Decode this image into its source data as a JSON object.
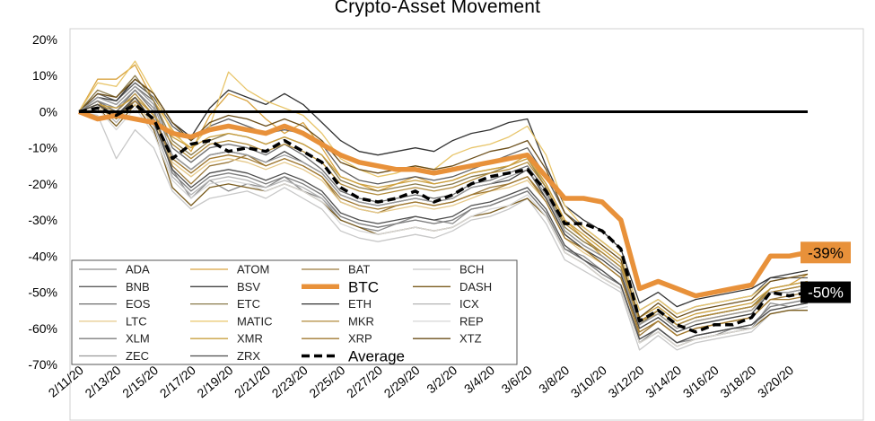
{
  "chart_data": {
    "type": "line",
    "title": "Crypto-Asset Movement",
    "xlabel": "",
    "ylabel": "",
    "ylim": [
      -70,
      20
    ],
    "y_ticks": [
      20,
      10,
      0,
      -10,
      -20,
      -30,
      -40,
      -50,
      -60,
      -70
    ],
    "y_tick_labels": [
      "20%",
      "10%",
      "0%",
      "-10%",
      "-20%",
      "-30%",
      "-40%",
      "-50%",
      "-60%",
      "-70%"
    ],
    "x": [
      "2/11/20",
      "2/12/20",
      "2/13/20",
      "2/14/20",
      "2/15/20",
      "2/16/20",
      "2/17/20",
      "2/18/20",
      "2/19/20",
      "2/20/20",
      "2/21/20",
      "2/22/20",
      "2/23/20",
      "2/24/20",
      "2/25/20",
      "2/26/20",
      "2/27/20",
      "2/28/20",
      "2/29/20",
      "3/1/20",
      "3/2/20",
      "3/3/20",
      "3/4/20",
      "3/5/20",
      "3/6/20",
      "3/7/20",
      "3/8/20",
      "3/9/20",
      "3/10/20",
      "3/11/20",
      "3/12/20",
      "3/13/20",
      "3/14/20",
      "3/15/20",
      "3/16/20",
      "3/17/20",
      "3/18/20",
      "3/19/20",
      "3/20/20",
      "3/21/20"
    ],
    "x_tick_labels": [
      "2/11/20",
      "2/13/20",
      "2/15/20",
      "2/17/20",
      "2/19/20",
      "2/21/20",
      "2/23/20",
      "2/25/20",
      "2/27/20",
      "2/29/20",
      "3/2/20",
      "3/4/20",
      "3/6/20",
      "3/8/20",
      "3/10/20",
      "3/12/20",
      "3/14/20",
      "3/16/20",
      "3/18/20",
      "3/20/20"
    ],
    "grid": false,
    "legend_position": "bottom-left",
    "highlight_labels": [
      {
        "series": "BTC",
        "text": "-39%",
        "color": "#e8913a",
        "text_color": "#000000"
      },
      {
        "series": "Average",
        "text": "-50%",
        "color": "#000000",
        "text_color": "#ffffff"
      }
    ],
    "series": [
      {
        "name": "ADA",
        "color": "#8c8c8c",
        "values": [
          0,
          3,
          1,
          6,
          1,
          -16,
          -24,
          -19,
          -22,
          -20,
          -21,
          -18,
          -22,
          -24,
          -30,
          -32,
          -33,
          -31,
          -29,
          -30,
          -31,
          -27,
          -26,
          -24,
          -22,
          -28,
          -38,
          -40,
          -44,
          -48,
          -64,
          -60,
          -64,
          -63,
          -62,
          -60,
          -60,
          -53,
          -54,
          -53
        ]
      },
      {
        "name": "ATOM",
        "color": "#d9a441",
        "values": [
          0,
          9,
          9,
          13,
          3,
          -5,
          -11,
          -1,
          5,
          3,
          -2,
          -6,
          -3,
          -10,
          -18,
          -20,
          -22,
          -20,
          -18,
          -20,
          -19,
          -17,
          -16,
          -15,
          -12,
          -20,
          -30,
          -35,
          -40,
          -44,
          -58,
          -56,
          -60,
          -58,
          -57,
          -56,
          -55,
          -49,
          -48,
          -45
        ]
      },
      {
        "name": "BAT",
        "color": "#9c7a3c",
        "values": [
          0,
          3,
          -2,
          4,
          -3,
          -15,
          -20,
          -15,
          -14,
          -12,
          -15,
          -13,
          -15,
          -18,
          -25,
          -27,
          -28,
          -26,
          -25,
          -26,
          -25,
          -23,
          -21,
          -20,
          -18,
          -24,
          -34,
          -38,
          -42,
          -46,
          -62,
          -58,
          -62,
          -60,
          -59,
          -58,
          -57,
          -52,
          -51,
          -50
        ]
      },
      {
        "name": "BCH",
        "color": "#c8c8c8",
        "values": [
          0,
          -1,
          -13,
          -5,
          -10,
          -22,
          -27,
          -24,
          -23,
          -22,
          -24,
          -21,
          -24,
          -27,
          -33,
          -35,
          -36,
          -35,
          -34,
          -35,
          -33,
          -30,
          -29,
          -27,
          -24,
          -31,
          -41,
          -44,
          -47,
          -50,
          -66,
          -62,
          -66,
          -64,
          -63,
          -62,
          -61,
          -56,
          -55,
          -54
        ]
      },
      {
        "name": "BNB",
        "color": "#5e5e5e",
        "values": [
          0,
          5,
          3,
          8,
          4,
          -4,
          -8,
          -4,
          -2,
          -4,
          -6,
          -5,
          -6,
          -9,
          -16,
          -19,
          -20,
          -19,
          -18,
          -19,
          -18,
          -16,
          -14,
          -12,
          -10,
          -18,
          -28,
          -32,
          -36,
          -40,
          -55,
          -52,
          -56,
          -54,
          -53,
          -52,
          -51,
          -46,
          -46,
          -46
        ]
      },
      {
        "name": "BSV",
        "color": "#444444",
        "values": [
          0,
          2,
          -1,
          3,
          -2,
          -12,
          -16,
          -12,
          -11,
          -12,
          -14,
          -11,
          -14,
          -17,
          -23,
          -25,
          -26,
          -25,
          -24,
          -25,
          -24,
          -21,
          -20,
          -19,
          -16,
          -24,
          -34,
          -38,
          -41,
          -45,
          -60,
          -57,
          -61,
          -59,
          -58,
          -57,
          -56,
          -50,
          -50,
          -49
        ]
      },
      {
        "name": "BTC",
        "color": "#e8913a",
        "width": 5.5,
        "values": [
          0,
          -2,
          -1,
          -2,
          -3,
          -6,
          -7,
          -5,
          -4,
          -5,
          -6,
          -4,
          -6,
          -9,
          -12,
          -14,
          -15,
          -16,
          -16,
          -17,
          -16,
          -15,
          -14,
          -13,
          -12,
          -18,
          -24,
          -24,
          -25,
          -30,
          -49,
          -47,
          -49,
          -51,
          -50,
          -49,
          -48,
          -40,
          -40,
          -39
        ]
      },
      {
        "name": "DASH",
        "color": "#7a5c1e",
        "values": [
          0,
          1,
          -4,
          2,
          -5,
          -21,
          -26,
          -21,
          -20,
          -21,
          -22,
          -20,
          -22,
          -25,
          -30,
          -32,
          -34,
          -33,
          -32,
          -33,
          -32,
          -29,
          -28,
          -26,
          -24,
          -29,
          -39,
          -42,
          -46,
          -49,
          -64,
          -61,
          -65,
          -63,
          -62,
          -61,
          -60,
          -56,
          -55,
          -55
        ]
      },
      {
        "name": "EOS",
        "color": "#6e6e6e",
        "values": [
          0,
          4,
          2,
          7,
          3,
          -10,
          -14,
          -10,
          -9,
          -10,
          -12,
          -9,
          -12,
          -16,
          -22,
          -24,
          -25,
          -24,
          -23,
          -24,
          -23,
          -20,
          -19,
          -17,
          -15,
          -22,
          -33,
          -37,
          -40,
          -44,
          -59,
          -55,
          -59,
          -57,
          -56,
          -55,
          -54,
          -50,
          -49,
          -48
        ]
      },
      {
        "name": "ETC",
        "color": "#8a7a4a",
        "values": [
          0,
          6,
          4,
          10,
          3,
          -8,
          -12,
          -8,
          -6,
          -7,
          -9,
          -7,
          -9,
          -12,
          -19,
          -21,
          -22,
          -21,
          -20,
          -21,
          -20,
          -18,
          -17,
          -15,
          -13,
          -21,
          -32,
          -36,
          -39,
          -43,
          -59,
          -55,
          -59,
          -57,
          -56,
          -55,
          -54,
          -49,
          -48,
          -47
        ]
      },
      {
        "name": "ETH",
        "color": "#333333",
        "values": [
          0,
          4,
          3,
          9,
          5,
          -3,
          -7,
          1,
          6,
          4,
          2,
          5,
          2,
          -3,
          -8,
          -11,
          -12,
          -11,
          -10,
          -11,
          -8,
          -6,
          -5,
          -3,
          -2,
          -15,
          -26,
          -30,
          -33,
          -38,
          -53,
          -50,
          -54,
          -52,
          -51,
          -50,
          -49,
          -46,
          -45,
          -44
        ]
      },
      {
        "name": "ICX",
        "color": "#b4b4b4",
        "values": [
          0,
          2,
          -3,
          3,
          -4,
          -18,
          -23,
          -19,
          -18,
          -19,
          -21,
          -19,
          -21,
          -24,
          -29,
          -31,
          -32,
          -31,
          -30,
          -31,
          -30,
          -27,
          -26,
          -24,
          -22,
          -28,
          -38,
          -41,
          -45,
          -48,
          -63,
          -60,
          -64,
          -62,
          -61,
          -60,
          -59,
          -54,
          -53,
          -52
        ]
      },
      {
        "name": "LTC",
        "color": "#e6c98a",
        "values": [
          0,
          1,
          -2,
          2,
          -3,
          -14,
          -18,
          -14,
          -13,
          -14,
          -16,
          -14,
          -16,
          -19,
          -25,
          -27,
          -28,
          -27,
          -26,
          -27,
          -26,
          -24,
          -22,
          -21,
          -19,
          -25,
          -35,
          -39,
          -42,
          -46,
          -61,
          -58,
          -62,
          -60,
          -59,
          -58,
          -57,
          -52,
          -52,
          -51
        ]
      },
      {
        "name": "MATIC",
        "color": "#e8c56a",
        "values": [
          0,
          8,
          7,
          14,
          5,
          -6,
          -10,
          -4,
          11,
          6,
          3,
          1,
          -1,
          -6,
          -13,
          -16,
          -18,
          -17,
          -15,
          -16,
          -12,
          -10,
          -9,
          -7,
          -4,
          -12,
          -26,
          -32,
          -36,
          -40,
          -55,
          -52,
          -56,
          -54,
          -53,
          -52,
          -51,
          -47,
          -46,
          -45
        ]
      },
      {
        "name": "MKR",
        "color": "#b08a3a",
        "values": [
          0,
          2,
          0,
          5,
          -1,
          -9,
          -13,
          -9,
          -8,
          -9,
          -11,
          -9,
          -11,
          -14,
          -20,
          -22,
          -23,
          -22,
          -21,
          -22,
          -21,
          -19,
          -17,
          -16,
          -14,
          -21,
          -31,
          -35,
          -39,
          -43,
          -58,
          -55,
          -59,
          -57,
          -56,
          -55,
          -54,
          -50,
          -49,
          -48
        ]
      },
      {
        "name": "REP",
        "color": "#d6d6d6",
        "values": [
          0,
          1,
          -5,
          1,
          -6,
          -19,
          -24,
          -20,
          -19,
          -20,
          -22,
          -20,
          -22,
          -25,
          -31,
          -33,
          -34,
          -33,
          -32,
          -33,
          -32,
          -29,
          -27,
          -26,
          -23,
          -29,
          -39,
          -42,
          -46,
          -49,
          -64,
          -61,
          -65,
          -63,
          -62,
          -61,
          -60,
          -55,
          -54,
          -53
        ]
      },
      {
        "name": "XLM",
        "color": "#7d7d7d",
        "values": [
          0,
          3,
          0,
          6,
          0,
          -17,
          -22,
          -18,
          -17,
          -18,
          -20,
          -18,
          -20,
          -23,
          -29,
          -31,
          -32,
          -31,
          -30,
          -31,
          -30,
          -27,
          -26,
          -24,
          -22,
          -28,
          -38,
          -41,
          -45,
          -48,
          -63,
          -60,
          -64,
          -62,
          -61,
          -60,
          -59,
          -54,
          -53,
          -52
        ]
      },
      {
        "name": "XMR",
        "color": "#caa040",
        "values": [
          0,
          2,
          1,
          4,
          -1,
          -7,
          -10,
          -7,
          -6,
          -7,
          -9,
          -7,
          -9,
          -12,
          -18,
          -20,
          -21,
          -20,
          -19,
          -20,
          -19,
          -17,
          -16,
          -15,
          -13,
          -20,
          -30,
          -34,
          -38,
          -42,
          -57,
          -54,
          -58,
          -56,
          -55,
          -54,
          -53,
          -49,
          -48,
          -47
        ]
      },
      {
        "name": "XRP",
        "color": "#a07830",
        "values": [
          0,
          2,
          -2,
          3,
          -2,
          -13,
          -17,
          -13,
          -12,
          -13,
          -15,
          -13,
          -15,
          -18,
          -24,
          -26,
          -27,
          -26,
          -25,
          -26,
          -25,
          -23,
          -22,
          -20,
          -18,
          -25,
          -35,
          -38,
          -42,
          -46,
          -61,
          -58,
          -62,
          -60,
          -59,
          -58,
          -57,
          -52,
          -52,
          -51
        ]
      },
      {
        "name": "XTZ",
        "color": "#6b4e1a",
        "values": [
          0,
          5,
          4,
          9,
          5,
          -3,
          -8,
          -3,
          -1,
          -2,
          -4,
          -2,
          -4,
          -8,
          -14,
          -16,
          -17,
          -16,
          -15,
          -16,
          -15,
          -13,
          -11,
          -10,
          -8,
          -16,
          -28,
          -33,
          -37,
          -41,
          -57,
          -53,
          -57,
          -55,
          -54,
          -53,
          -52,
          -47,
          -46,
          -45
        ]
      },
      {
        "name": "ZEC",
        "color": "#9a9a9a",
        "values": [
          0,
          4,
          2,
          7,
          2,
          -12,
          -16,
          -12,
          -11,
          -12,
          -14,
          -12,
          -14,
          -17,
          -23,
          -25,
          -26,
          -25,
          -24,
          -25,
          -24,
          -21,
          -20,
          -18,
          -16,
          -23,
          -33,
          -37,
          -40,
          -44,
          -59,
          -56,
          -60,
          -58,
          -57,
          -56,
          -55,
          -50,
          -50,
          -49
        ]
      },
      {
        "name": "ZRX",
        "color": "#4d4d4d",
        "values": [
          0,
          2,
          -1,
          4,
          -3,
          -16,
          -21,
          -17,
          -16,
          -17,
          -19,
          -17,
          -19,
          -22,
          -28,
          -30,
          -31,
          -30,
          -29,
          -30,
          -29,
          -26,
          -25,
          -23,
          -21,
          -27,
          -37,
          -41,
          -44,
          -48,
          -63,
          -60,
          -64,
          -62,
          -61,
          -60,
          -59,
          -55,
          -54,
          -53
        ]
      },
      {
        "name": "Average",
        "color": "#000000",
        "width": 3.5,
        "dash": "9,5",
        "values": [
          0,
          1,
          -1,
          2,
          -2,
          -13,
          -9,
          -8,
          -11,
          -10,
          -11,
          -8,
          -11,
          -14,
          -21,
          -24,
          -25,
          -24,
          -22,
          -25,
          -23,
          -20,
          -18,
          -17,
          -16,
          -22,
          -31,
          -31,
          -33,
          -38,
          -58,
          -55,
          -59,
          -61,
          -59,
          -59,
          -57,
          -50,
          -51,
          -50
        ]
      }
    ]
  }
}
